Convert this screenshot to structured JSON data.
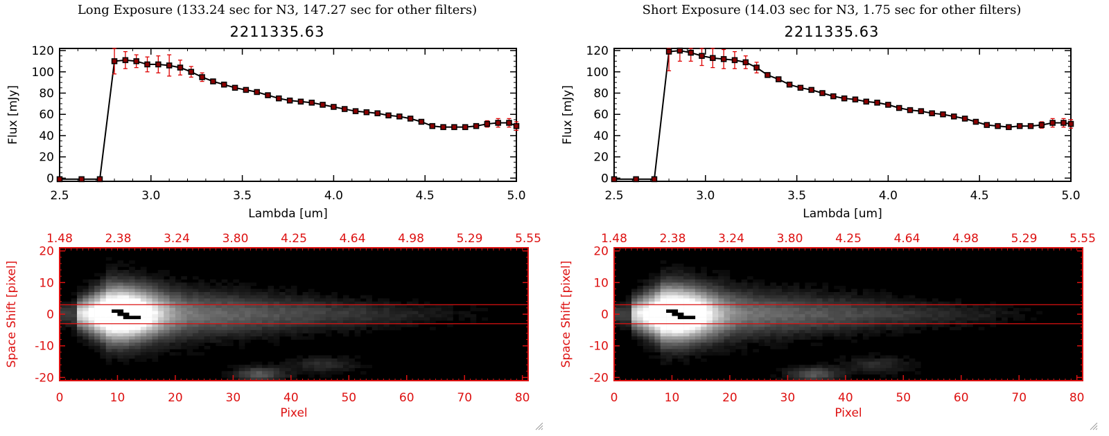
{
  "panels": [
    {
      "exposure_title": "Long Exposure (133.24 sec for N3, 147.27 sec for other filters)",
      "plot_title": "2211335.63",
      "seed": 7
    },
    {
      "exposure_title": "Short Exposure (14.03 sec for N3, 1.75 sec for other filters)",
      "plot_title": "2211335.63",
      "seed": 13
    }
  ],
  "colors": {
    "line": "#000000",
    "errorbar": "#dd0000",
    "marker_fill": "#8b0000",
    "image_axes": "#dd1111",
    "background": "#ffffff"
  },
  "icons": {
    "resize": "resize-grip-icon"
  },
  "chart_data": [
    {
      "type": "line",
      "title": "2211335.63",
      "xlabel": "Lambda [um]",
      "ylabel": "Flux [mJy]",
      "xlim": [
        2.5,
        5.0
      ],
      "ylim": [
        -3,
        122
      ],
      "xticks": [
        "2.5",
        "3.0",
        "3.5",
        "4.0",
        "4.5",
        "5.0"
      ],
      "yticks": [
        "0",
        "20",
        "40",
        "60",
        "80",
        "100",
        "120"
      ],
      "series": [
        {
          "x": [
            2.5,
            2.62,
            2.72,
            2.8,
            2.86,
            2.92,
            2.98,
            3.04,
            3.1,
            3.16,
            3.22,
            3.28,
            3.34,
            3.4,
            3.46,
            3.52,
            3.58,
            3.64,
            3.7,
            3.76,
            3.82,
            3.88,
            3.94,
            4.0,
            4.06,
            4.12,
            4.18,
            4.24,
            4.3,
            4.36,
            4.42,
            4.48,
            4.54,
            4.6,
            4.66,
            4.72,
            4.78,
            4.84,
            4.9,
            4.96,
            5.0
          ],
          "y": [
            -1,
            -1,
            -1,
            110,
            111,
            110,
            107,
            107,
            106,
            104,
            100,
            95,
            91,
            88,
            85,
            83,
            81,
            78,
            75,
            73,
            72,
            71,
            69,
            67,
            65,
            63,
            62,
            61,
            59,
            58,
            56,
            53,
            49,
            48,
            48,
            48,
            49,
            51,
            52,
            52,
            49
          ],
          "yerr": [
            0,
            0,
            0,
            12,
            8,
            6,
            7,
            8,
            10,
            7,
            5,
            4,
            2,
            2,
            2,
            2,
            2,
            2,
            2,
            2,
            2,
            2,
            2,
            2,
            2,
            2,
            2,
            2,
            2,
            2,
            2,
            2,
            2,
            2,
            2,
            2,
            2,
            3,
            4,
            4,
            4
          ]
        }
      ]
    },
    {
      "type": "heatmap",
      "xlabel": "Pixel",
      "ylabel": "Space Shift [pixel]",
      "xlim": [
        0,
        81
      ],
      "ylim": [
        -21,
        21
      ],
      "xticks": [
        "0",
        "10",
        "20",
        "30",
        "40",
        "50",
        "60",
        "70",
        "80"
      ],
      "yticks": [
        "20",
        "10",
        "0",
        "-10",
        "-20"
      ],
      "top_axis_labels": [
        "1.48",
        "2.38",
        "3.24",
        "3.80",
        "4.25",
        "4.64",
        "4.98",
        "5.29",
        "5.55"
      ],
      "extraction_window": [
        -3,
        3
      ]
    },
    {
      "type": "line",
      "title": "2211335.63",
      "xlabel": "Lambda [um]",
      "ylabel": "Flux [mJy]",
      "xlim": [
        2.5,
        5.0
      ],
      "ylim": [
        -3,
        122
      ],
      "xticks": [
        "2.5",
        "3.0",
        "3.5",
        "4.0",
        "4.5",
        "5.0"
      ],
      "yticks": [
        "0",
        "20",
        "40",
        "60",
        "80",
        "100",
        "120"
      ],
      "series": [
        {
          "x": [
            2.5,
            2.62,
            2.72,
            2.8,
            2.86,
            2.92,
            2.98,
            3.04,
            3.1,
            3.16,
            3.22,
            3.28,
            3.34,
            3.4,
            3.46,
            3.52,
            3.58,
            3.64,
            3.7,
            3.76,
            3.82,
            3.88,
            3.94,
            4.0,
            4.06,
            4.12,
            4.18,
            4.24,
            4.3,
            4.36,
            4.42,
            4.48,
            4.54,
            4.6,
            4.66,
            4.72,
            4.78,
            4.84,
            4.9,
            4.96,
            5.0
          ],
          "y": [
            -1,
            -1,
            -1,
            119,
            120,
            118,
            115,
            113,
            112,
            111,
            109,
            104,
            97,
            93,
            88,
            85,
            83,
            80,
            77,
            75,
            74,
            72,
            71,
            69,
            66,
            64,
            63,
            61,
            60,
            58,
            56,
            53,
            50,
            49,
            48,
            49,
            49,
            50,
            52,
            52,
            51
          ],
          "yerr": [
            0,
            0,
            0,
            18,
            10,
            8,
            9,
            9,
            9,
            8,
            6,
            5,
            2,
            2,
            2,
            2,
            2,
            2,
            2,
            2,
            2,
            2,
            2,
            2,
            2,
            2,
            2,
            2,
            2,
            2,
            2,
            2,
            2,
            2,
            2,
            2,
            2,
            3,
            4,
            4,
            4
          ]
        }
      ]
    },
    {
      "type": "heatmap",
      "xlabel": "Pixel",
      "ylabel": "Space Shift [pixel]",
      "xlim": [
        0,
        81
      ],
      "ylim": [
        -21,
        21
      ],
      "xticks": [
        "0",
        "10",
        "20",
        "30",
        "40",
        "50",
        "60",
        "70",
        "80"
      ],
      "yticks": [
        "20",
        "10",
        "0",
        "-10",
        "-20"
      ],
      "top_axis_labels": [
        "1.48",
        "2.38",
        "3.24",
        "3.80",
        "4.25",
        "4.64",
        "4.98",
        "5.29",
        "5.55"
      ],
      "extraction_window": [
        -3,
        3
      ]
    }
  ]
}
